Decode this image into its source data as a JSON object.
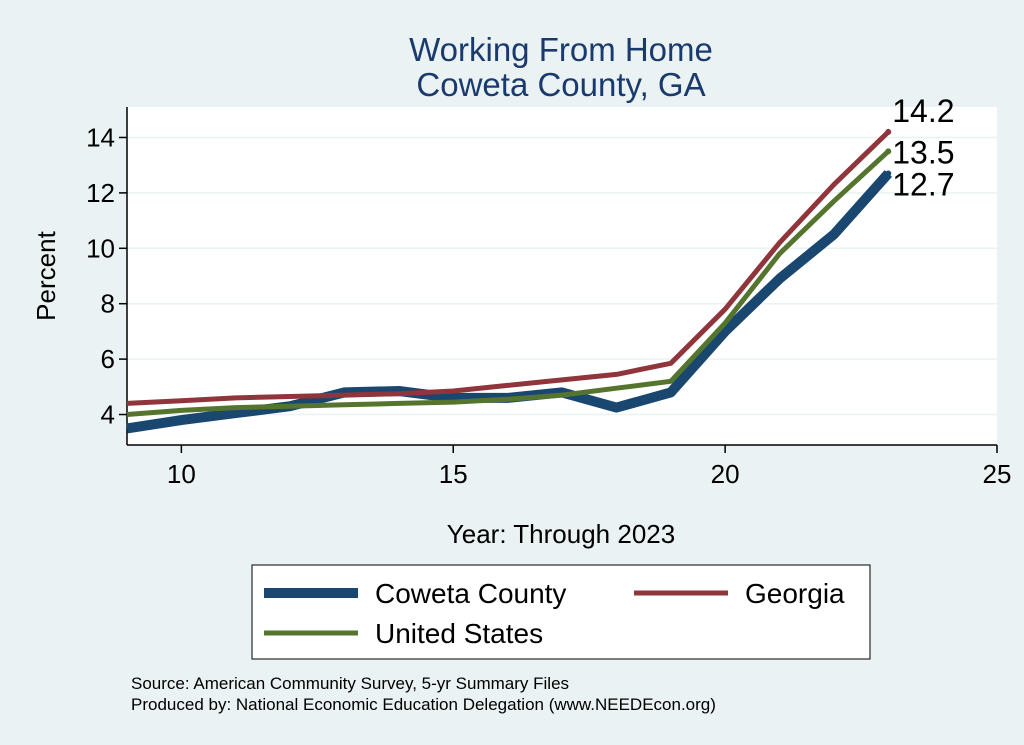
{
  "chart_data": {
    "type": "line",
    "title": "Working From Home",
    "subtitle": "Coweta County, GA",
    "xlabel": "Year: Through 2023",
    "ylabel": "Percent",
    "xlim": [
      9,
      25
    ],
    "ylim": [
      2.9,
      15.1
    ],
    "xticks": [
      10,
      15,
      20,
      25
    ],
    "yticks": [
      4,
      6,
      8,
      10,
      12,
      14
    ],
    "grid": true,
    "legend_position": "bottom",
    "series": [
      {
        "name": "Coweta County",
        "color": "#1a476f",
        "x": [
          9,
          10,
          11,
          12,
          13,
          14,
          15,
          16,
          17,
          18,
          19,
          20,
          21,
          22,
          23
        ],
        "y": [
          3.5,
          3.8,
          4.05,
          4.3,
          4.8,
          4.85,
          4.6,
          4.6,
          4.8,
          4.25,
          4.8,
          7.0,
          8.9,
          10.5,
          12.7
        ],
        "end_label": "12.7"
      },
      {
        "name": "Georgia",
        "color": "#90353b",
        "x": [
          9,
          10,
          11,
          12,
          13,
          14,
          15,
          16,
          17,
          18,
          19,
          20,
          21,
          22,
          23
        ],
        "y": [
          4.4,
          4.5,
          4.6,
          4.65,
          4.7,
          4.75,
          4.85,
          5.05,
          5.25,
          5.45,
          5.85,
          7.8,
          10.2,
          12.3,
          14.2
        ],
        "end_label": "14.2"
      },
      {
        "name": "United States",
        "color": "#55752f",
        "x": [
          9,
          10,
          11,
          12,
          13,
          14,
          15,
          16,
          17,
          18,
          19,
          20,
          21,
          22,
          23
        ],
        "y": [
          4.0,
          4.15,
          4.25,
          4.3,
          4.35,
          4.4,
          4.45,
          4.55,
          4.7,
          4.95,
          5.2,
          7.3,
          9.8,
          11.7,
          13.5
        ],
        "end_label": "13.5"
      }
    ]
  },
  "footer": {
    "source": "Source: American Community Survey, 5-yr Summary Files",
    "produced_by": "Produced by: National Economic Education Delegation (www.NEEDEcon.org)"
  }
}
